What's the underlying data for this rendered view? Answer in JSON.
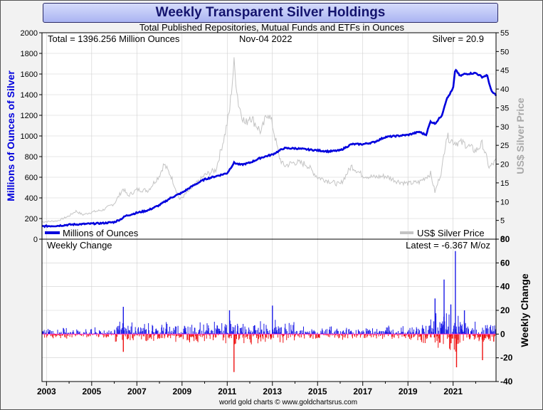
{
  "header": {
    "title": "Weekly Transparent Silver Holdings",
    "subtitle": "Total Published Repositories, Mutual Funds and ETFs in Ounces"
  },
  "footer": {
    "credit": "world gold charts © www.goldchartsrus.com"
  },
  "colors": {
    "holdings_line": "#0000dd",
    "silver_price_line": "#c4c4c4",
    "positive_change": "#1a1ae6",
    "negative_change": "#ee1111",
    "zero_line": "#ff33cc"
  },
  "chart_data": [
    {
      "type": "line",
      "annotations": {
        "total": "Total = 1396.256 Million Ounces",
        "date": "Nov-04  2022",
        "silver": "Silver = 20.9"
      },
      "ylabel": "Millions of Ounces of Silver",
      "y2label": "US$ Silver Price",
      "ylim": [
        0,
        2000
      ],
      "y_ticks": [
        0,
        200,
        400,
        600,
        800,
        1000,
        1200,
        1400,
        1600,
        1800,
        2000
      ],
      "y2lim": [
        0,
        55
      ],
      "y2_ticks": [
        0,
        5,
        10,
        15,
        20,
        25,
        30,
        35,
        40,
        45,
        50,
        55
      ],
      "xlim": [
        2002.8,
        2022.9
      ],
      "x_ticks": [
        "2003",
        "2005",
        "2007",
        "2009",
        "2011",
        "2013",
        "2015",
        "2017",
        "2019",
        "2021"
      ],
      "legend": {
        "holdings": "Millions of Ounces",
        "price": "US$ Silver Price"
      },
      "series": [
        {
          "name": "Millions of Ounces",
          "axis": "left",
          "x": [
            2002.8,
            2003.5,
            2004.0,
            2004.5,
            2005.0,
            2005.5,
            2006.0,
            2006.3,
            2006.5,
            2007.0,
            2007.5,
            2008.0,
            2008.5,
            2009.0,
            2009.5,
            2010.0,
            2010.5,
            2011.0,
            2011.3,
            2011.6,
            2012.0,
            2012.5,
            2013.0,
            2013.5,
            2014.0,
            2014.5,
            2015.0,
            2015.5,
            2016.0,
            2016.5,
            2017.0,
            2017.5,
            2018.0,
            2018.5,
            2019.0,
            2019.5,
            2019.8,
            2020.0,
            2020.2,
            2020.5,
            2020.7,
            2021.0,
            2021.1,
            2021.3,
            2021.5,
            2022.0,
            2022.3,
            2022.5,
            2022.7,
            2022.9
          ],
          "values": [
            125,
            130,
            140,
            145,
            150,
            155,
            165,
            195,
            225,
            255,
            280,
            330,
            400,
            450,
            520,
            580,
            610,
            640,
            740,
            720,
            740,
            790,
            820,
            880,
            880,
            870,
            860,
            850,
            860,
            920,
            920,
            940,
            990,
            1000,
            1010,
            1040,
            1010,
            1140,
            1120,
            1200,
            1350,
            1460,
            1650,
            1580,
            1600,
            1610,
            1570,
            1590,
            1430,
            1396
          ]
        },
        {
          "name": "US$ Silver Price",
          "axis": "right",
          "x": [
            2002.8,
            2003.5,
            2004.0,
            2004.3,
            2004.6,
            2005.0,
            2005.5,
            2006.0,
            2006.4,
            2006.6,
            2007.0,
            2007.5,
            2008.0,
            2008.2,
            2008.5,
            2008.9,
            2009.5,
            2010.0,
            2010.5,
            2010.9,
            2011.1,
            2011.3,
            2011.5,
            2011.8,
            2012.0,
            2012.5,
            2012.8,
            2013.0,
            2013.3,
            2013.5,
            2014.0,
            2014.5,
            2015.0,
            2015.5,
            2016.0,
            2016.5,
            2017.0,
            2017.5,
            2018.0,
            2018.5,
            2019.0,
            2019.5,
            2020.0,
            2020.2,
            2020.5,
            2020.7,
            2021.0,
            2021.5,
            2022.0,
            2022.3,
            2022.6,
            2022.9
          ],
          "values": [
            4.6,
            4.9,
            6.2,
            7.5,
            6.5,
            7.2,
            7.8,
            9.5,
            13.5,
            11.5,
            13.2,
            13.0,
            17.0,
            20.0,
            17.0,
            10.5,
            14.0,
            17.0,
            18.5,
            28.0,
            34.0,
            47.0,
            36.0,
            30.5,
            33.0,
            28.5,
            34.0,
            30.5,
            22.0,
            19.5,
            20.5,
            20.0,
            16.5,
            15.5,
            14.5,
            19.5,
            17.0,
            16.5,
            16.8,
            15.5,
            14.8,
            15.2,
            17.5,
            12.5,
            18.5,
            27.5,
            26.0,
            25.5,
            23.5,
            25.5,
            19.0,
            20.9
          ]
        }
      ]
    },
    {
      "type": "bar",
      "label": "Weekly Change",
      "latest": "Latest = -6.367 M/oz",
      "ylabel": "Weekly Change",
      "ylim": [
        -40,
        80
      ],
      "y_ticks": [
        -40,
        -20,
        0,
        20,
        40,
        60,
        80
      ],
      "xlim": [
        2002.8,
        2022.9
      ],
      "x_ticks": [
        "2003",
        "2005",
        "2007",
        "2009",
        "2011",
        "2013",
        "2015",
        "2017",
        "2019",
        "2021"
      ],
      "notable_bars": [
        {
          "x": 2006.4,
          "value": 23
        },
        {
          "x": 2006.4,
          "value": -15
        },
        {
          "x": 2011.3,
          "value": -32
        },
        {
          "x": 2011.1,
          "value": 20
        },
        {
          "x": 2013.0,
          "value": 24
        },
        {
          "x": 2020.2,
          "value": 30
        },
        {
          "x": 2020.6,
          "value": 46
        },
        {
          "x": 2020.9,
          "value": 25
        },
        {
          "x": 2021.1,
          "value": 70
        },
        {
          "x": 2021.15,
          "value": -28
        },
        {
          "x": 2021.5,
          "value": 20
        },
        {
          "x": 2022.3,
          "value": -22
        },
        {
          "x": 2022.8,
          "value": -6.367
        }
      ],
      "typical_magnitude": {
        "2003-2006": 4,
        "2006-2011": 8,
        "2011-2014": 9,
        "2014-2019": 5,
        "2019-2020": 8,
        "2020-2021.5": 15,
        "2021.5-2022.9": 8
      }
    }
  ]
}
